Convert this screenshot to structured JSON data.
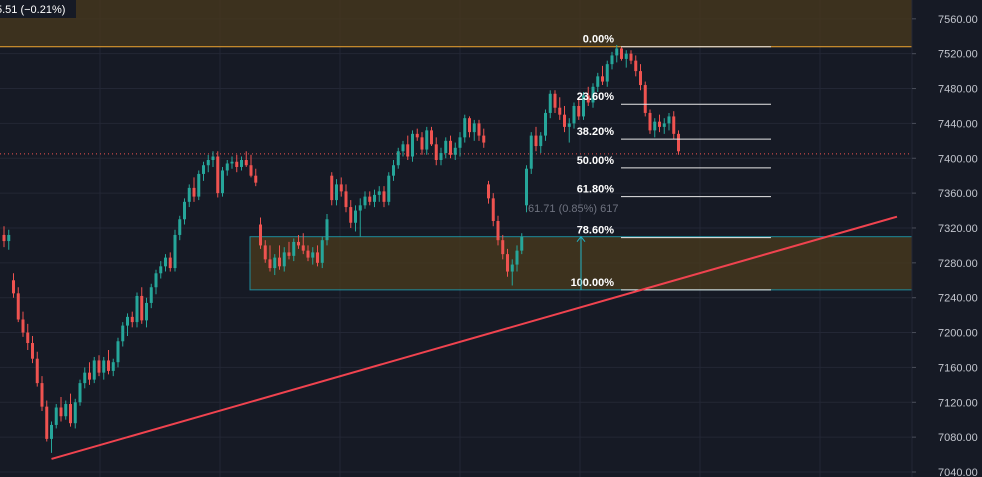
{
  "header": {
    "change_text": "5.51 (−0.21%)"
  },
  "colors": {
    "background": "#161a25",
    "grid": "#232735",
    "up": "#26a69a",
    "down": "#ef5350",
    "zone_fill": "#4a3a1c",
    "zone_border": "#22b3c4",
    "trendline": "#f0434f",
    "fib_line": "#e8e8e8",
    "top_line": "#f0a530",
    "price_line": "#ef5350"
  },
  "chart_data": {
    "type": "candlestick",
    "title": "",
    "ylim": [
      7040,
      7580
    ],
    "y_ticks": [
      7040,
      7080,
      7120,
      7160,
      7200,
      7240,
      7280,
      7320,
      7360,
      7400,
      7440,
      7480,
      7520,
      7560
    ],
    "y_tick_labels": [
      "7040.00",
      "7080.00",
      "7120.00",
      "7160.00",
      "7200.00",
      "7240.00",
      "7280.00",
      "7320.00",
      "7360.00",
      "7400.00",
      "7440.00",
      "7480.00",
      "7520.00",
      "7560.00"
    ],
    "current_price": 7405,
    "top_resistance": 7528,
    "candles": [
      [
        7312,
        7322,
        7298,
        7305
      ],
      [
        7305,
        7318,
        7295,
        7312
      ],
      [
        7260,
        7268,
        7240,
        7245
      ],
      [
        7245,
        7252,
        7212,
        7215
      ],
      [
        7215,
        7224,
        7195,
        7200
      ],
      [
        7200,
        7210,
        7180,
        7188
      ],
      [
        7188,
        7196,
        7165,
        7170
      ],
      [
        7170,
        7178,
        7138,
        7142
      ],
      [
        7142,
        7150,
        7110,
        7115
      ],
      [
        7115,
        7122,
        7075,
        7078
      ],
      [
        7078,
        7098,
        7062,
        7094
      ],
      [
        7094,
        7118,
        7090,
        7114
      ],
      [
        7114,
        7126,
        7098,
        7104
      ],
      [
        7104,
        7122,
        7100,
        7118
      ],
      [
        7118,
        7130,
        7092,
        7096
      ],
      [
        7096,
        7124,
        7090,
        7120
      ],
      [
        7120,
        7146,
        7116,
        7142
      ],
      [
        7142,
        7160,
        7136,
        7154
      ],
      [
        7154,
        7166,
        7140,
        7146
      ],
      [
        7146,
        7172,
        7142,
        7168
      ],
      [
        7168,
        7174,
        7150,
        7154
      ],
      [
        7154,
        7172,
        7146,
        7168
      ],
      [
        7168,
        7180,
        7152,
        7156
      ],
      [
        7156,
        7170,
        7150,
        7166
      ],
      [
        7166,
        7194,
        7160,
        7190
      ],
      [
        7190,
        7212,
        7184,
        7208
      ],
      [
        7208,
        7222,
        7196,
        7218
      ],
      [
        7218,
        7224,
        7206,
        7212
      ],
      [
        7212,
        7246,
        7206,
        7242
      ],
      [
        7242,
        7252,
        7210,
        7214
      ],
      [
        7214,
        7240,
        7206,
        7234
      ],
      [
        7234,
        7256,
        7228,
        7252
      ],
      [
        7252,
        7272,
        7244,
        7268
      ],
      [
        7268,
        7282,
        7262,
        7276
      ],
      [
        7276,
        7290,
        7270,
        7286
      ],
      [
        7286,
        7292,
        7270,
        7274
      ],
      [
        7274,
        7318,
        7270,
        7312
      ],
      [
        7312,
        7334,
        7306,
        7330
      ],
      [
        7330,
        7354,
        7324,
        7350
      ],
      [
        7350,
        7370,
        7344,
        7366
      ],
      [
        7366,
        7378,
        7350,
        7356
      ],
      [
        7356,
        7386,
        7352,
        7382
      ],
      [
        7382,
        7396,
        7374,
        7392
      ],
      [
        7392,
        7404,
        7384,
        7398
      ],
      [
        7398,
        7408,
        7390,
        7402
      ],
      [
        7402,
        7408,
        7355,
        7360
      ],
      [
        7360,
        7390,
        7356,
        7386
      ],
      [
        7386,
        7398,
        7380,
        7394
      ],
      [
        7394,
        7402,
        7388,
        7396
      ],
      [
        7396,
        7404,
        7384,
        7390
      ],
      [
        7390,
        7402,
        7386,
        7398
      ],
      [
        7398,
        7408,
        7390,
        7392
      ],
      [
        7392,
        7404,
        7378,
        7380
      ],
      [
        7380,
        7388,
        7368,
        7372
      ],
      [
        7324,
        7332,
        7296,
        7300
      ],
      [
        7300,
        7306,
        7280,
        7284
      ],
      [
        7284,
        7300,
        7270,
        7274
      ],
      [
        7274,
        7290,
        7266,
        7286
      ],
      [
        7286,
        7300,
        7272,
        7276
      ],
      [
        7276,
        7298,
        7270,
        7292
      ],
      [
        7292,
        7304,
        7284,
        7288
      ],
      [
        7288,
        7308,
        7282,
        7304
      ],
      [
        7304,
        7312,
        7296,
        7300
      ],
      [
        7300,
        7314,
        7290,
        7294
      ],
      [
        7294,
        7300,
        7282,
        7286
      ],
      [
        7286,
        7298,
        7278,
        7292
      ],
      [
        7292,
        7300,
        7276,
        7280
      ],
      [
        7280,
        7310,
        7274,
        7306
      ],
      [
        7306,
        7336,
        7300,
        7330
      ],
      [
        7380,
        7384,
        7346,
        7352
      ],
      [
        7352,
        7376,
        7346,
        7370
      ],
      [
        7370,
        7378,
        7356,
        7362
      ],
      [
        7362,
        7370,
        7338,
        7344
      ],
      [
        7344,
        7352,
        7320,
        7326
      ],
      [
        7326,
        7346,
        7316,
        7340
      ],
      [
        7340,
        7354,
        7310,
        7346
      ],
      [
        7346,
        7362,
        7342,
        7356
      ],
      [
        7356,
        7362,
        7346,
        7350
      ],
      [
        7350,
        7364,
        7344,
        7358
      ],
      [
        7358,
        7368,
        7350,
        7362
      ],
      [
        7362,
        7368,
        7344,
        7350
      ],
      [
        7350,
        7384,
        7346,
        7380
      ],
      [
        7380,
        7398,
        7374,
        7392
      ],
      [
        7392,
        7412,
        7388,
        7408
      ],
      [
        7408,
        7420,
        7402,
        7416
      ],
      [
        7416,
        7426,
        7398,
        7402
      ],
      [
        7402,
        7432,
        7396,
        7428
      ],
      [
        7428,
        7434,
        7420,
        7424
      ],
      [
        7424,
        7430,
        7404,
        7410
      ],
      [
        7410,
        7436,
        7404,
        7432
      ],
      [
        7432,
        7436,
        7414,
        7416
      ],
      [
        7416,
        7424,
        7392,
        7398
      ],
      [
        7398,
        7412,
        7392,
        7406
      ],
      [
        7406,
        7424,
        7400,
        7420
      ],
      [
        7420,
        7426,
        7400,
        7404
      ],
      [
        7404,
        7418,
        7398,
        7412
      ],
      [
        7412,
        7430,
        7402,
        7424
      ],
      [
        7424,
        7450,
        7418,
        7446
      ],
      [
        7446,
        7448,
        7424,
        7430
      ],
      [
        7430,
        7444,
        7420,
        7440
      ],
      [
        7440,
        7444,
        7420,
        7426
      ],
      [
        7426,
        7434,
        7412,
        7418
      ],
      [
        7370,
        7374,
        7348,
        7354
      ],
      [
        7354,
        7360,
        7322,
        7328
      ],
      [
        7328,
        7334,
        7300,
        7306
      ],
      [
        7306,
        7312,
        7284,
        7290
      ],
      [
        7290,
        7296,
        7264,
        7270
      ],
      [
        7270,
        7284,
        7254,
        7278
      ],
      [
        7278,
        7300,
        7270,
        7294
      ],
      [
        7294,
        7314,
        7290,
        7310
      ],
      [
        7346,
        7392,
        7338,
        7388
      ],
      [
        7388,
        7430,
        7382,
        7426
      ],
      [
        7426,
        7436,
        7408,
        7414
      ],
      [
        7414,
        7430,
        7406,
        7426
      ],
      [
        7426,
        7456,
        7420,
        7452
      ],
      [
        7452,
        7478,
        7446,
        7474
      ],
      [
        7474,
        7478,
        7452,
        7458
      ],
      [
        7458,
        7470,
        7444,
        7450
      ],
      [
        7450,
        7460,
        7430,
        7436
      ],
      [
        7436,
        7446,
        7418,
        7440
      ],
      [
        7440,
        7464,
        7434,
        7460
      ],
      [
        7460,
        7470,
        7444,
        7448
      ],
      [
        7448,
        7476,
        7444,
        7472
      ],
      [
        7472,
        7482,
        7460,
        7464
      ],
      [
        7464,
        7486,
        7458,
        7482
      ],
      [
        7482,
        7498,
        7476,
        7494
      ],
      [
        7494,
        7506,
        7484,
        7488
      ],
      [
        7488,
        7512,
        7482,
        7508
      ],
      [
        7508,
        7522,
        7502,
        7518
      ],
      [
        7518,
        7530,
        7510,
        7526
      ],
      [
        7526,
        7528,
        7512,
        7514
      ],
      [
        7514,
        7524,
        7504,
        7520
      ],
      [
        7520,
        7524,
        7508,
        7512
      ],
      [
        7512,
        7518,
        7494,
        7500
      ],
      [
        7500,
        7508,
        7478,
        7484
      ],
      [
        7484,
        7488,
        7448,
        7452
      ],
      [
        7452,
        7456,
        7428,
        7432
      ],
      [
        7432,
        7446,
        7424,
        7442
      ],
      [
        7442,
        7450,
        7430,
        7436
      ],
      [
        7436,
        7446,
        7428,
        7440
      ],
      [
        7440,
        7452,
        7432,
        7448
      ],
      [
        7448,
        7454,
        7422,
        7428
      ],
      [
        7428,
        7432,
        7404,
        7408
      ]
    ],
    "fib_levels": [
      {
        "label": "0.00%",
        "price": 7528
      },
      {
        "label": "23.60%",
        "price": 7462
      },
      {
        "label": "38.20%",
        "price": 7422
      },
      {
        "label": "50.00%",
        "price": 7389
      },
      {
        "label": "61.80%",
        "price": 7356
      },
      {
        "label": "78.60%",
        "price": 7309
      },
      {
        "label": "100.00%",
        "price": 7249
      }
    ],
    "zone": {
      "top": 7310,
      "bottom": 7249
    },
    "trendline": {
      "from_index": 10,
      "from_price": 7055,
      "to_index": 188,
      "to_price": 7333
    },
    "measure": {
      "text": "61.71 (0.85%) 617"
    }
  }
}
